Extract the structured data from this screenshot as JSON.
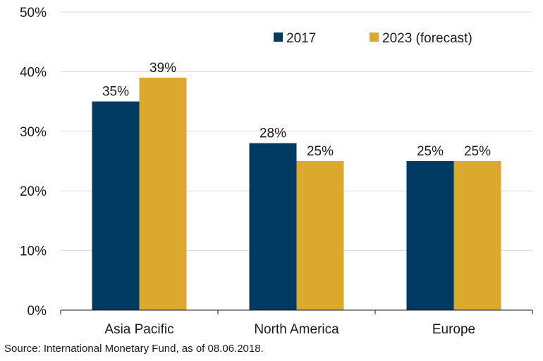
{
  "chart_data": {
    "type": "bar",
    "title": "",
    "xlabel": "",
    "ylabel": "",
    "categories": [
      "Asia Pacific",
      "North America",
      "Europe"
    ],
    "series": [
      {
        "name": "2017",
        "values": [
          35,
          28,
          25
        ],
        "labels": [
          "35%",
          "28%",
          "25%"
        ],
        "color": "#003a63"
      },
      {
        "name": "2023 (forecast)",
        "values": [
          39,
          25,
          25
        ],
        "labels": [
          "39%",
          "25%",
          "25%"
        ],
        "color": "#dba92e"
      }
    ],
    "ylim": [
      0,
      50
    ],
    "yticks": [
      0,
      10,
      20,
      30,
      40,
      50
    ],
    "ytick_labels": [
      "0%",
      "10%",
      "20%",
      "30%",
      "40%",
      "50%"
    ],
    "grid": true,
    "legend_position": "top-right"
  },
  "footer": {
    "source": "Source: International Monetary Fund, as of 08.06.2018."
  }
}
